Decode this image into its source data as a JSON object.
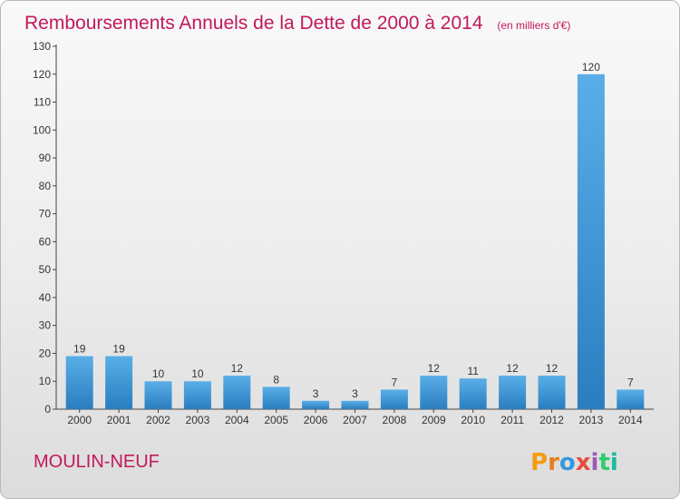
{
  "header": {
    "title": "Remboursements Annuels de la Dette de 2000 à 2014",
    "unit": "(en milliers d'€)"
  },
  "footer": {
    "place": "MOULIN-NEUF",
    "logo": "Proxiti"
  },
  "colors": {
    "title": "#c2185b",
    "bar_top": "#5aaee8",
    "bar_bottom": "#2a7ec0",
    "logo_letters": [
      "#f39c12",
      "#e67e22",
      "#3498db",
      "#e74c3c",
      "#9b59b6",
      "#2ecc71",
      "#1abc9c"
    ]
  },
  "chart_data": {
    "type": "bar",
    "categories": [
      "2000",
      "2001",
      "2002",
      "2003",
      "2004",
      "2005",
      "2006",
      "2007",
      "2008",
      "2009",
      "2010",
      "2011",
      "2012",
      "2013",
      "2014"
    ],
    "values": [
      19,
      19,
      10,
      10,
      12,
      8,
      3,
      3,
      7,
      12,
      11,
      12,
      12,
      120,
      7
    ],
    "ylim": [
      0,
      130
    ],
    "yticks": [
      0,
      10,
      20,
      30,
      40,
      50,
      60,
      70,
      80,
      90,
      100,
      110,
      120,
      130
    ],
    "grid": false,
    "legend": "none"
  }
}
